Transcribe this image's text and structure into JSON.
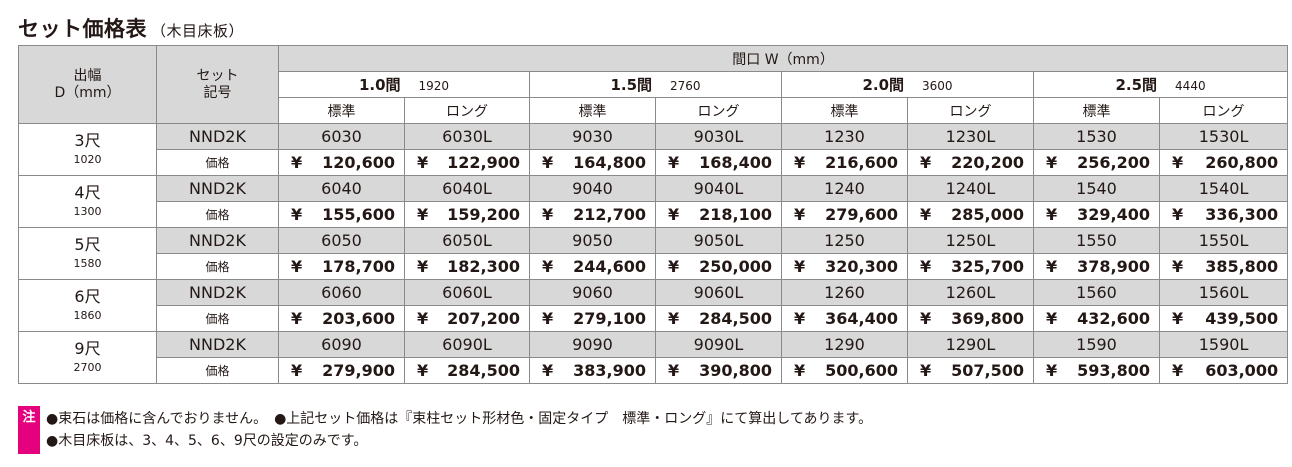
{
  "title": "セット価格表",
  "subtitle": "（木目床板）",
  "header": {
    "depth_label_1": "出幅",
    "depth_label_2": "D（mm）",
    "set_label_1": "セット",
    "set_label_2": "記号",
    "width_label": "間口 W（mm）",
    "widths": [
      {
        "label": "1.0間",
        "mm": "1920"
      },
      {
        "label": "1.5間",
        "mm": "2760"
      },
      {
        "label": "2.0間",
        "mm": "3600"
      },
      {
        "label": "2.5間",
        "mm": "4440"
      }
    ],
    "standard": "標準",
    "long": "ロング"
  },
  "price_label": "価格",
  "yen": "¥",
  "rows": [
    {
      "shaku": "3尺",
      "mm": "1020",
      "set": "NND2K",
      "codes": [
        "6030",
        "6030L",
        "9030",
        "9030L",
        "1230",
        "1230L",
        "1530",
        "1530L"
      ],
      "prices": [
        "120,600",
        "122,900",
        "164,800",
        "168,400",
        "216,600",
        "220,200",
        "256,200",
        "260,800"
      ]
    },
    {
      "shaku": "4尺",
      "mm": "1300",
      "set": "NND2K",
      "codes": [
        "6040",
        "6040L",
        "9040",
        "9040L",
        "1240",
        "1240L",
        "1540",
        "1540L"
      ],
      "prices": [
        "155,600",
        "159,200",
        "212,700",
        "218,100",
        "279,600",
        "285,000",
        "329,400",
        "336,300"
      ]
    },
    {
      "shaku": "5尺",
      "mm": "1580",
      "set": "NND2K",
      "codes": [
        "6050",
        "6050L",
        "9050",
        "9050L",
        "1250",
        "1250L",
        "1550",
        "1550L"
      ],
      "prices": [
        "178,700",
        "182,300",
        "244,600",
        "250,000",
        "320,300",
        "325,700",
        "378,900",
        "385,800"
      ]
    },
    {
      "shaku": "6尺",
      "mm": "1860",
      "set": "NND2K",
      "codes": [
        "6060",
        "6060L",
        "9060",
        "9060L",
        "1260",
        "1260L",
        "1560",
        "1560L"
      ],
      "prices": [
        "203,600",
        "207,200",
        "279,100",
        "284,500",
        "364,400",
        "369,800",
        "432,600",
        "439,500"
      ]
    },
    {
      "shaku": "9尺",
      "mm": "2700",
      "set": "NND2K",
      "codes": [
        "6090",
        "6090L",
        "9090",
        "9090L",
        "1290",
        "1290L",
        "1590",
        "1590L"
      ],
      "prices": [
        "279,900",
        "284,500",
        "383,900",
        "390,800",
        "500,600",
        "507,500",
        "593,800",
        "603,000"
      ]
    }
  ],
  "notes": {
    "badge": "注",
    "line1": "●束石は価格に含んでおりません。　●上記セット価格は『束柱セット形材色・固定タイプ　標準・ロング』にて算出してあります。",
    "line2": "●木目床板は、3、4、5、6、9尺の設定のみです。"
  }
}
